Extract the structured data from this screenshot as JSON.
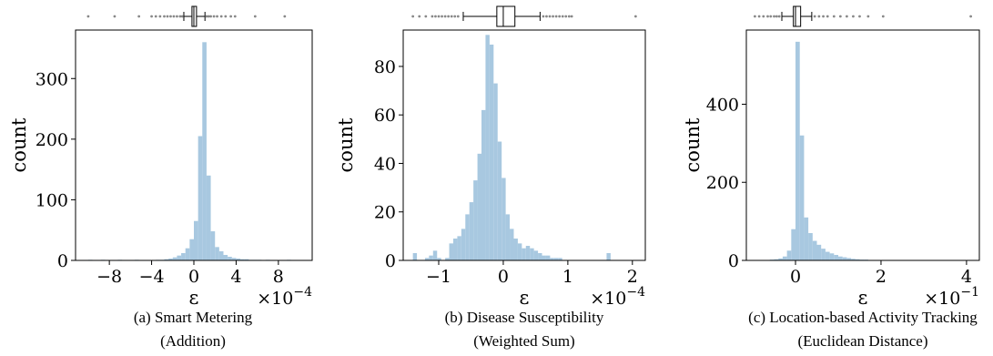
{
  "colors": {
    "bar": "#a8c8e0",
    "axis": "#000000",
    "box": "#000000",
    "flier": "#888888"
  },
  "chart_data": [
    {
      "type": "bar",
      "subtype": "histogram with marginal boxplot",
      "xlabel": "ε",
      "x_multiplier": "×10",
      "x_exponent": "−4",
      "ylabel": "count",
      "xlim": [
        -11.2,
        11.2
      ],
      "ylim": [
        0,
        380
      ],
      "xticks": [
        -8,
        -4,
        0,
        4,
        8
      ],
      "xtick_labels": [
        "−8",
        "−4",
        "0",
        "4",
        "8"
      ],
      "yticks": [
        0,
        100,
        200,
        300
      ],
      "ytick_labels": [
        "0",
        "100",
        "200",
        "300"
      ],
      "bin_start": -10.0,
      "bin_width": 0.4,
      "counts": [
        1,
        0,
        0,
        1,
        0,
        0,
        0,
        1,
        0,
        0,
        0,
        1,
        0,
        0,
        0,
        0,
        1,
        1,
        2,
        3,
        5,
        8,
        12,
        20,
        35,
        65,
        205,
        360,
        140,
        48,
        22,
        15,
        9,
        6,
        4,
        3,
        2,
        2,
        1,
        1,
        1,
        0,
        1,
        0,
        0,
        0,
        0,
        1,
        0,
        0
      ],
      "box": {
        "q1": -0.18,
        "median": 0.0,
        "q3": 0.25,
        "whisker_low": -0.95,
        "whisker_high": 1.05
      },
      "fliers": [
        -10.0,
        -7.5,
        -5.2,
        -4.0,
        -3.6,
        -3.2,
        -2.8,
        -2.5,
        -2.2,
        -1.9,
        -1.6,
        -1.3,
        -1.1,
        1.2,
        1.4,
        1.6,
        1.9,
        2.2,
        2.6,
        3.0,
        3.5,
        3.9,
        5.8,
        8.6
      ],
      "caption_line1": "(a) Smart Metering",
      "caption_line2": "(Addition)"
    },
    {
      "type": "bar",
      "subtype": "histogram with marginal boxplot",
      "xlabel": "ε",
      "x_multiplier": "×10",
      "x_exponent": "−4",
      "ylabel": "count",
      "xlim": [
        -1.55,
        2.2
      ],
      "ylim": [
        0,
        95
      ],
      "xticks": [
        -1,
        0,
        1,
        2
      ],
      "xtick_labels": [
        "−1",
        "0",
        "1",
        "2"
      ],
      "yticks": [
        0,
        20,
        40,
        60,
        80
      ],
      "ytick_labels": [
        "0",
        "20",
        "40",
        "60",
        "80"
      ],
      "bin_start": -1.4,
      "bin_width": 0.0625,
      "counts": [
        3,
        0,
        0,
        1,
        2,
        4,
        1,
        0,
        1,
        7,
        9,
        10,
        13,
        19,
        24,
        33,
        44,
        62,
        93,
        89,
        73,
        49,
        34,
        19,
        13,
        9,
        7,
        5,
        6,
        5,
        4,
        3,
        2,
        2,
        1,
        1,
        1,
        0,
        0,
        0,
        0,
        0,
        0,
        0,
        0,
        0,
        0,
        0,
        3
      ],
      "box": {
        "q1": -0.1,
        "median": 0.0,
        "q3": 0.18,
        "whisker_low": -0.62,
        "whisker_high": 0.57
      },
      "fliers": [
        -1.4,
        -1.3,
        -1.2,
        -1.1,
        -1.05,
        -1.0,
        -0.95,
        -0.9,
        -0.85,
        -0.8,
        -0.75,
        -0.7,
        0.62,
        0.67,
        0.72,
        0.77,
        0.82,
        0.87,
        0.92,
        0.97,
        1.02,
        1.06,
        2.05
      ],
      "caption_line1": "(b) Disease Susceptibility",
      "caption_line2": "(Weighted Sum)"
    },
    {
      "type": "bar",
      "subtype": "histogram with marginal boxplot",
      "xlabel": "ε",
      "x_multiplier": "×10",
      "x_exponent": "−1",
      "ylabel": "count",
      "xlim": [
        -1.15,
        4.3
      ],
      "ylim": [
        0,
        590
      ],
      "xticks": [
        0,
        2,
        4
      ],
      "xtick_labels": [
        "0",
        "2",
        "4"
      ],
      "yticks": [
        0,
        200,
        400
      ],
      "ytick_labels": [
        "0",
        "200",
        "400"
      ],
      "bin_start": -1.0,
      "bin_width": 0.1,
      "counts": [
        1,
        0,
        1,
        1,
        2,
        3,
        5,
        10,
        25,
        80,
        560,
        320,
        110,
        70,
        50,
        40,
        30,
        22,
        18,
        14,
        10,
        8,
        6,
        4,
        3,
        2,
        2,
        1,
        1,
        1,
        0,
        1,
        0,
        1,
        0,
        0,
        1,
        0,
        0,
        0,
        0,
        0,
        0,
        0,
        0,
        0,
        0,
        0,
        0,
        0,
        1
      ],
      "box": {
        "q1": -0.05,
        "median": 0.0,
        "q3": 0.12,
        "whisker_low": -0.32,
        "whisker_high": 0.38
      },
      "fliers": [
        -0.95,
        -0.85,
        -0.75,
        -0.65,
        -0.58,
        -0.5,
        -0.44,
        -0.38,
        0.45,
        0.55,
        0.65,
        0.75,
        0.9,
        1.05,
        1.2,
        1.35,
        1.5,
        1.7,
        2.05,
        4.1
      ],
      "caption_line1": "(c) Location-based Activity Tracking",
      "caption_line2": "(Euclidean Distance)"
    }
  ]
}
